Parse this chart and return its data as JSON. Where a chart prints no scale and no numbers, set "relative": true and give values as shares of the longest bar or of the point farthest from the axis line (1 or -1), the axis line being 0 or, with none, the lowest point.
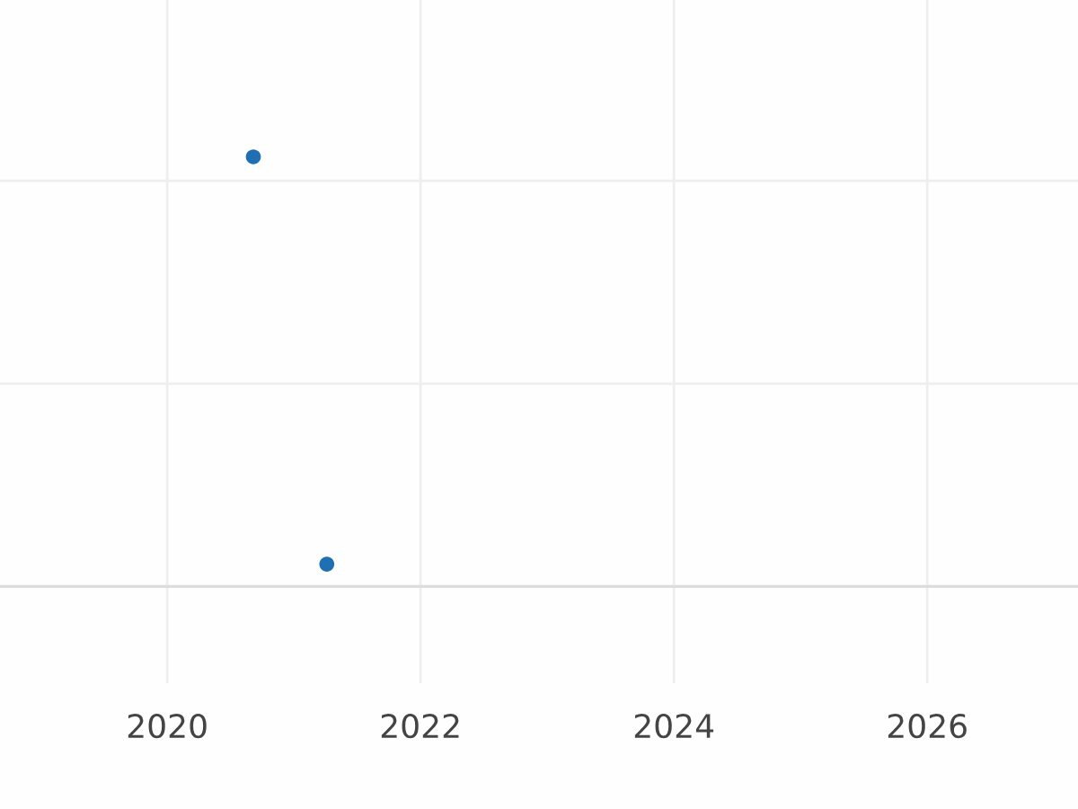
{
  "chart_data": {
    "type": "scatter",
    "relative": true,
    "x": [
      2020.68,
      2021.26
    ],
    "values": [
      1,
      0.052
    ],
    "color": "#1f6fb2",
    "xlim": [
      2018.68,
      2027.19
    ],
    "xticks": [
      2020,
      2022,
      2024,
      2026
    ],
    "grid": true,
    "marker": "circle",
    "tick_labels": "x"
  }
}
